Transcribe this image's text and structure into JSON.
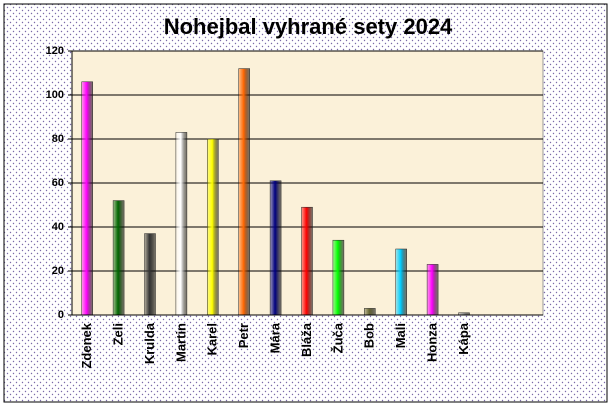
{
  "chart_data": {
    "type": "bar",
    "title": "Nohejbal vyhrané sety 2024",
    "categories": [
      "Zdenek",
      "Zeli",
      "Krulda",
      "Martin",
      "Karel",
      "Petr",
      "Mára",
      "Bláža",
      "Žuča",
      "Bob",
      "Mali",
      "Honza",
      "Kápa",
      null,
      null
    ],
    "values": [
      106,
      52,
      37,
      83,
      80,
      112,
      61,
      49,
      34,
      3,
      30,
      23,
      1,
      null,
      null
    ],
    "colors": [
      "#ff00ff",
      "#006600",
      "#333333",
      "#ffffff",
      "#ffff00",
      "#ff6600",
      "#000080",
      "#ff0000",
      "#00ff00",
      "#666633",
      "#00ccff",
      "#ff00ff",
      "#999999",
      null,
      null
    ],
    "ylim": [
      0,
      120
    ],
    "yticks": [
      0,
      20,
      40,
      60,
      80,
      100,
      120
    ],
    "grid": true
  }
}
